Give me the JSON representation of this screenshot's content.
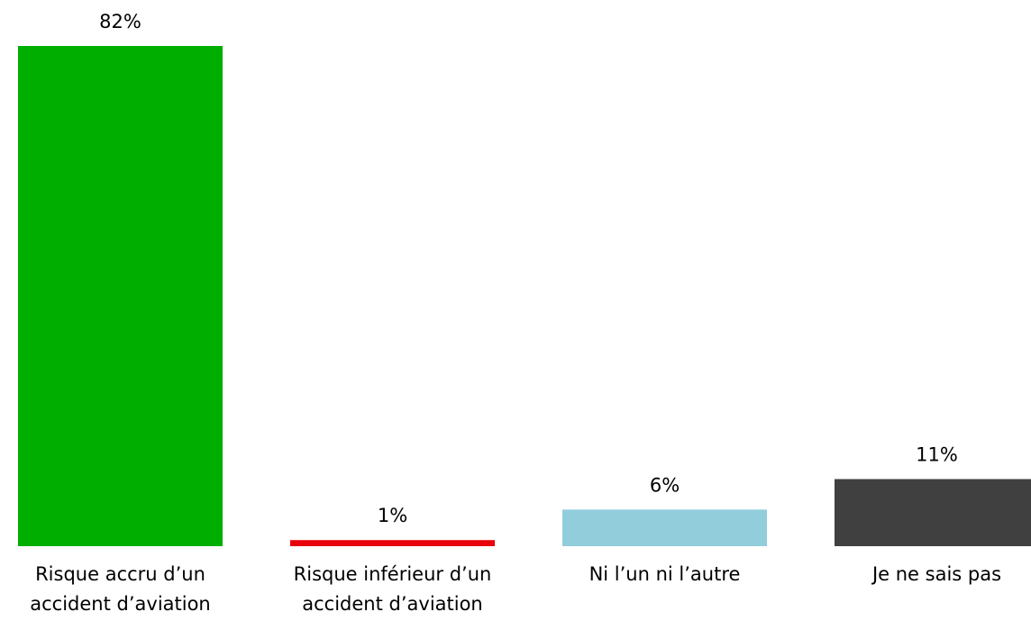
{
  "chart_data": {
    "type": "bar",
    "categories": [
      "Risque accru d’un accident d’aviation",
      "Risque inférieur d’un accident d’aviation",
      "Ni l’un ni l’autre",
      "Je ne sais pas"
    ],
    "values": [
      82,
      1,
      6,
      11
    ],
    "value_labels": [
      "82%",
      "1%",
      "6%",
      "11%"
    ],
    "colors": [
      "#00ae00",
      "#e8000b",
      "#92cddc",
      "#404040"
    ]
  }
}
